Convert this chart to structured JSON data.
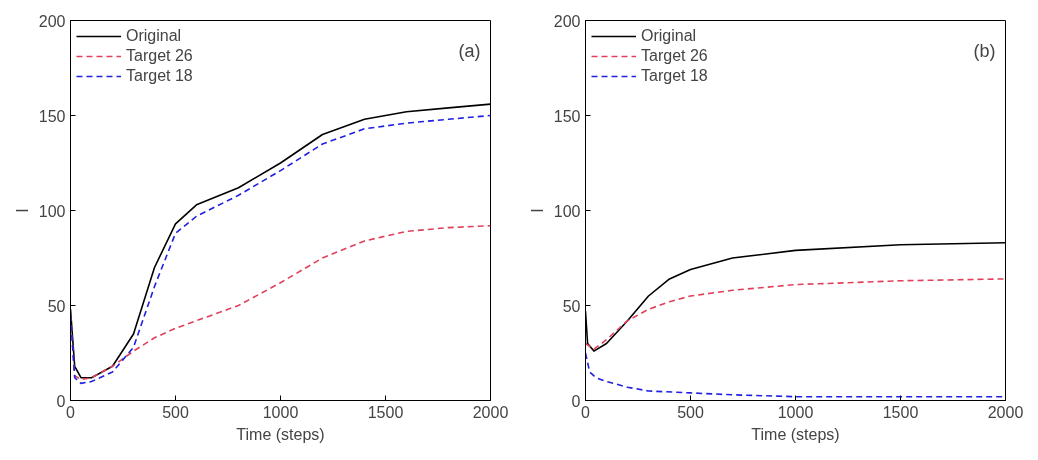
{
  "chart_data": [
    {
      "type": "line",
      "xlabel": "Time (steps)",
      "ylabel": "I",
      "annotations": [
        "(a)"
      ],
      "xlim": [
        0,
        2000
      ],
      "ylim": [
        0,
        200
      ],
      "xticks": [
        0,
        500,
        1000,
        1500,
        2000
      ],
      "yticks": [
        0,
        50,
        100,
        150,
        200
      ],
      "grid": false,
      "legend": "top left",
      "series": [
        {
          "name": "Original",
          "color": "#000000",
          "line_style": "solid",
          "x": [
            0,
            20,
            50,
            100,
            200,
            300,
            400,
            500,
            600,
            800,
            1000,
            1200,
            1400,
            1600,
            1800,
            2000
          ],
          "values": [
            48,
            18,
            12,
            12,
            18,
            35,
            70,
            93,
            103,
            112,
            125,
            140,
            148,
            152,
            154,
            156
          ]
        },
        {
          "name": "Target 26",
          "color": "#e0405a",
          "line_style": "dashed",
          "x": [
            0,
            20,
            50,
            100,
            200,
            300,
            400,
            500,
            600,
            800,
            1000,
            1200,
            1400,
            1600,
            1800,
            2000
          ],
          "values": [
            45,
            13,
            11,
            12,
            18,
            26,
            33,
            38,
            42,
            50,
            62,
            75,
            84,
            89,
            91,
            92
          ]
        },
        {
          "name": "Target 18",
          "color": "#2020e0",
          "line_style": "dashed",
          "x": [
            0,
            20,
            50,
            100,
            200,
            300,
            400,
            500,
            600,
            800,
            1000,
            1200,
            1400,
            1600,
            1800,
            2000
          ],
          "values": [
            45,
            12,
            9,
            10,
            15,
            28,
            60,
            88,
            97,
            108,
            121,
            135,
            143,
            146,
            148,
            150
          ]
        }
      ]
    },
    {
      "type": "line",
      "xlabel": "Time (steps)",
      "ylabel": "I",
      "annotations": [
        "(b)"
      ],
      "xlim": [
        0,
        2000
      ],
      "ylim": [
        0,
        200
      ],
      "xticks": [
        0,
        500,
        1000,
        1500,
        2000
      ],
      "yticks": [
        0,
        50,
        100,
        150,
        200
      ],
      "grid": false,
      "legend": "top left",
      "series": [
        {
          "name": "Original",
          "color": "#000000",
          "line_style": "solid",
          "x": [
            0,
            10,
            40,
            100,
            200,
            300,
            400,
            500,
            700,
            1000,
            1500,
            2000
          ],
          "values": [
            47,
            30,
            26,
            30,
            42,
            55,
            64,
            69,
            75,
            79,
            82,
            83
          ]
        },
        {
          "name": "Target 26",
          "color": "#e0405a",
          "line_style": "dashed",
          "x": [
            0,
            40,
            100,
            200,
            300,
            400,
            500,
            700,
            1000,
            1500,
            2000
          ],
          "values": [
            30,
            27,
            32,
            42,
            48,
            52,
            55,
            58,
            61,
            63,
            64
          ]
        },
        {
          "name": "Target 18",
          "color": "#2020e0",
          "line_style": "dashed",
          "x": [
            0,
            20,
            50,
            100,
            200,
            300,
            500,
            700,
            1000,
            1500,
            2000
          ],
          "values": [
            25,
            15,
            12,
            10,
            7,
            5,
            4,
            3,
            2,
            2,
            2
          ]
        }
      ]
    }
  ]
}
